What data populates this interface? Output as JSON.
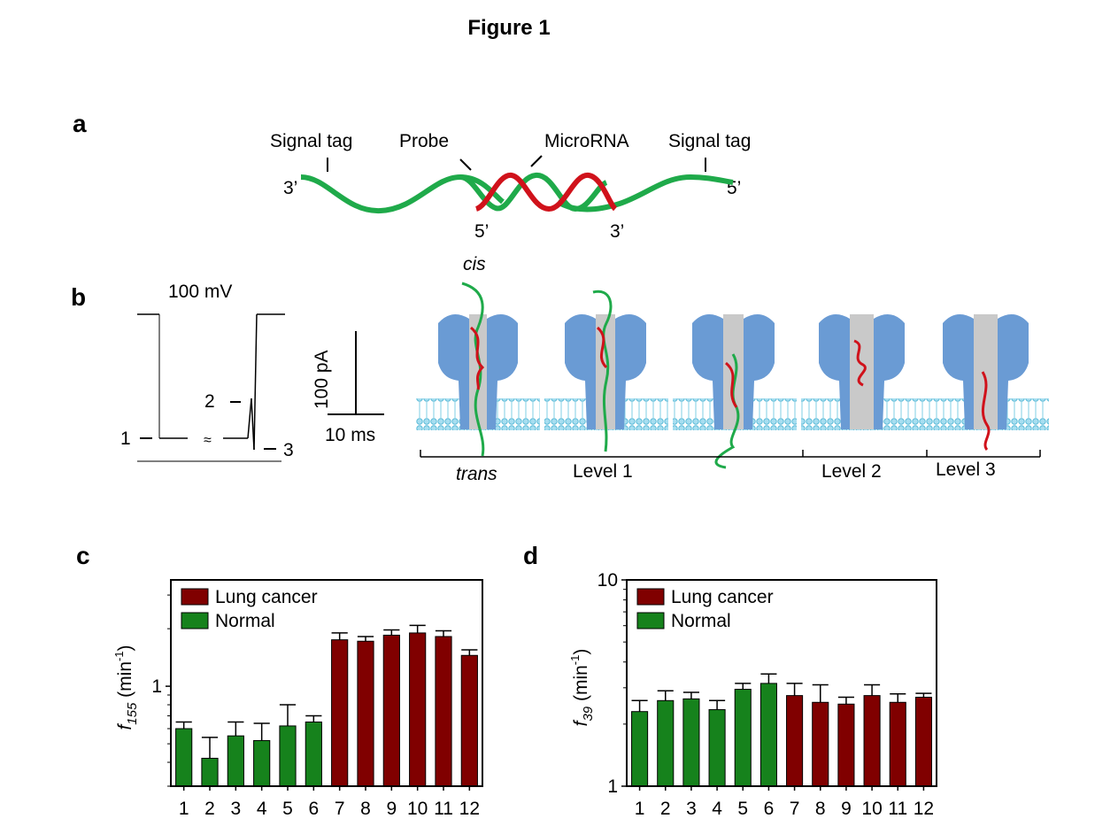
{
  "figure_title": "Figure 1",
  "panels": {
    "a": "a",
    "b": "b",
    "c": "c",
    "d": "d"
  },
  "panel_a": {
    "labels": {
      "signal_tag_left": "Signal tag",
      "probe": "Probe",
      "microrna": "MicroRNA",
      "signal_tag_right": "Signal tag"
    },
    "ends": {
      "left_3": "3’",
      "right_5": "5’",
      "bottom_5": "5’",
      "bottom_3": "3’"
    },
    "colors": {
      "probe": "#1faa4a",
      "microrna": "#d0121b"
    }
  },
  "panel_b": {
    "voltage": "100 mV",
    "current_scale": "100 pA",
    "time_scale": "10 ms",
    "trace_levels": {
      "l1": "1",
      "l2": "2",
      "l3": "3"
    },
    "cis": "cis",
    "trans": "trans",
    "levels": [
      "Level 1",
      "Level 2",
      "Level 3"
    ],
    "colors": {
      "protein": "#6a9bd4",
      "membrane": "#7fcfe6"
    }
  },
  "chart_data": [
    {
      "type": "bar",
      "panel": "c",
      "ylabel_var": "f",
      "ylabel_sub": "155",
      "ylabel_unit_pre": " (min",
      "ylabel_unit_sup": "-1",
      "ylabel_unit_post": ")",
      "yscale": "log",
      "ylim": [
        0.3,
        3.6
      ],
      "yticks": [
        {
          "value": 1,
          "label": "1"
        }
      ],
      "categories": [
        "1",
        "2",
        "3",
        "4",
        "5",
        "6",
        "7",
        "8",
        "9",
        "10",
        "11",
        "12"
      ],
      "values": [
        0.6,
        0.42,
        0.55,
        0.52,
        0.62,
        0.65,
        1.75,
        1.72,
        1.85,
        1.9,
        1.82,
        1.45
      ],
      "errors": [
        0.05,
        0.12,
        0.1,
        0.12,
        0.18,
        0.05,
        0.15,
        0.1,
        0.12,
        0.18,
        0.13,
        0.1
      ],
      "groups": [
        "Normal",
        "Normal",
        "Normal",
        "Normal",
        "Normal",
        "Normal",
        "Lung cancer",
        "Lung cancer",
        "Lung cancer",
        "Lung cancer",
        "Lung cancer",
        "Lung cancer"
      ],
      "legend": [
        {
          "name": "Lung cancer",
          "color": "#800000"
        },
        {
          "name": "Normal",
          "color": "#16821c"
        }
      ]
    },
    {
      "type": "bar",
      "panel": "d",
      "ylabel_var": "f",
      "ylabel_sub": "39",
      "ylabel_unit_pre": " (min",
      "ylabel_unit_sup": "-1",
      "ylabel_unit_post": ")",
      "yscale": "log",
      "ylim": [
        1,
        10
      ],
      "yticks": [
        {
          "value": 10,
          "label": "10"
        },
        {
          "value": 1,
          "label": "1"
        }
      ],
      "categories": [
        "1",
        "2",
        "3",
        "4",
        "5",
        "6",
        "7",
        "8",
        "9",
        "10",
        "11",
        "12"
      ],
      "values": [
        2.3,
        2.6,
        2.65,
        2.35,
        2.95,
        3.15,
        2.75,
        2.55,
        2.5,
        2.75,
        2.55,
        2.7
      ],
      "errors": [
        0.3,
        0.3,
        0.2,
        0.25,
        0.2,
        0.35,
        0.4,
        0.55,
        0.2,
        0.35,
        0.25,
        0.12
      ],
      "groups": [
        "Normal",
        "Normal",
        "Normal",
        "Normal",
        "Normal",
        "Normal",
        "Lung cancer",
        "Lung cancer",
        "Lung cancer",
        "Lung cancer",
        "Lung cancer",
        "Lung cancer"
      ],
      "legend": [
        {
          "name": "Lung cancer",
          "color": "#800000"
        },
        {
          "name": "Normal",
          "color": "#16821c"
        }
      ]
    }
  ]
}
